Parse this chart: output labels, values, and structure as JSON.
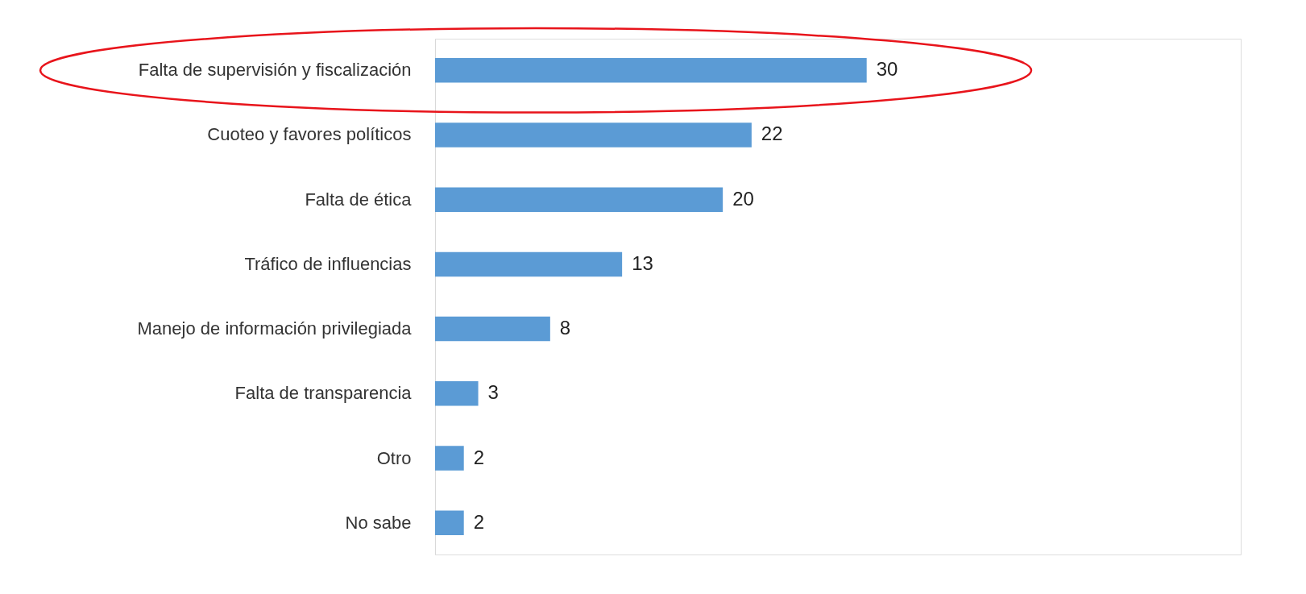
{
  "chart_data": {
    "type": "bar",
    "orientation": "horizontal",
    "categories": [
      "Falta de supervisión y fiscalización",
      "Cuoteo y favores políticos",
      "Falta de ética",
      "Tráfico de influencias",
      "Manejo de información privilegiada",
      "Falta de transparencia",
      "Otro",
      "No sabe"
    ],
    "values": [
      30,
      22,
      20,
      13,
      8,
      3,
      2,
      2
    ],
    "color": "#5b9bd5",
    "xlim": [
      0,
      56
    ],
    "data_labels": true
  }
}
